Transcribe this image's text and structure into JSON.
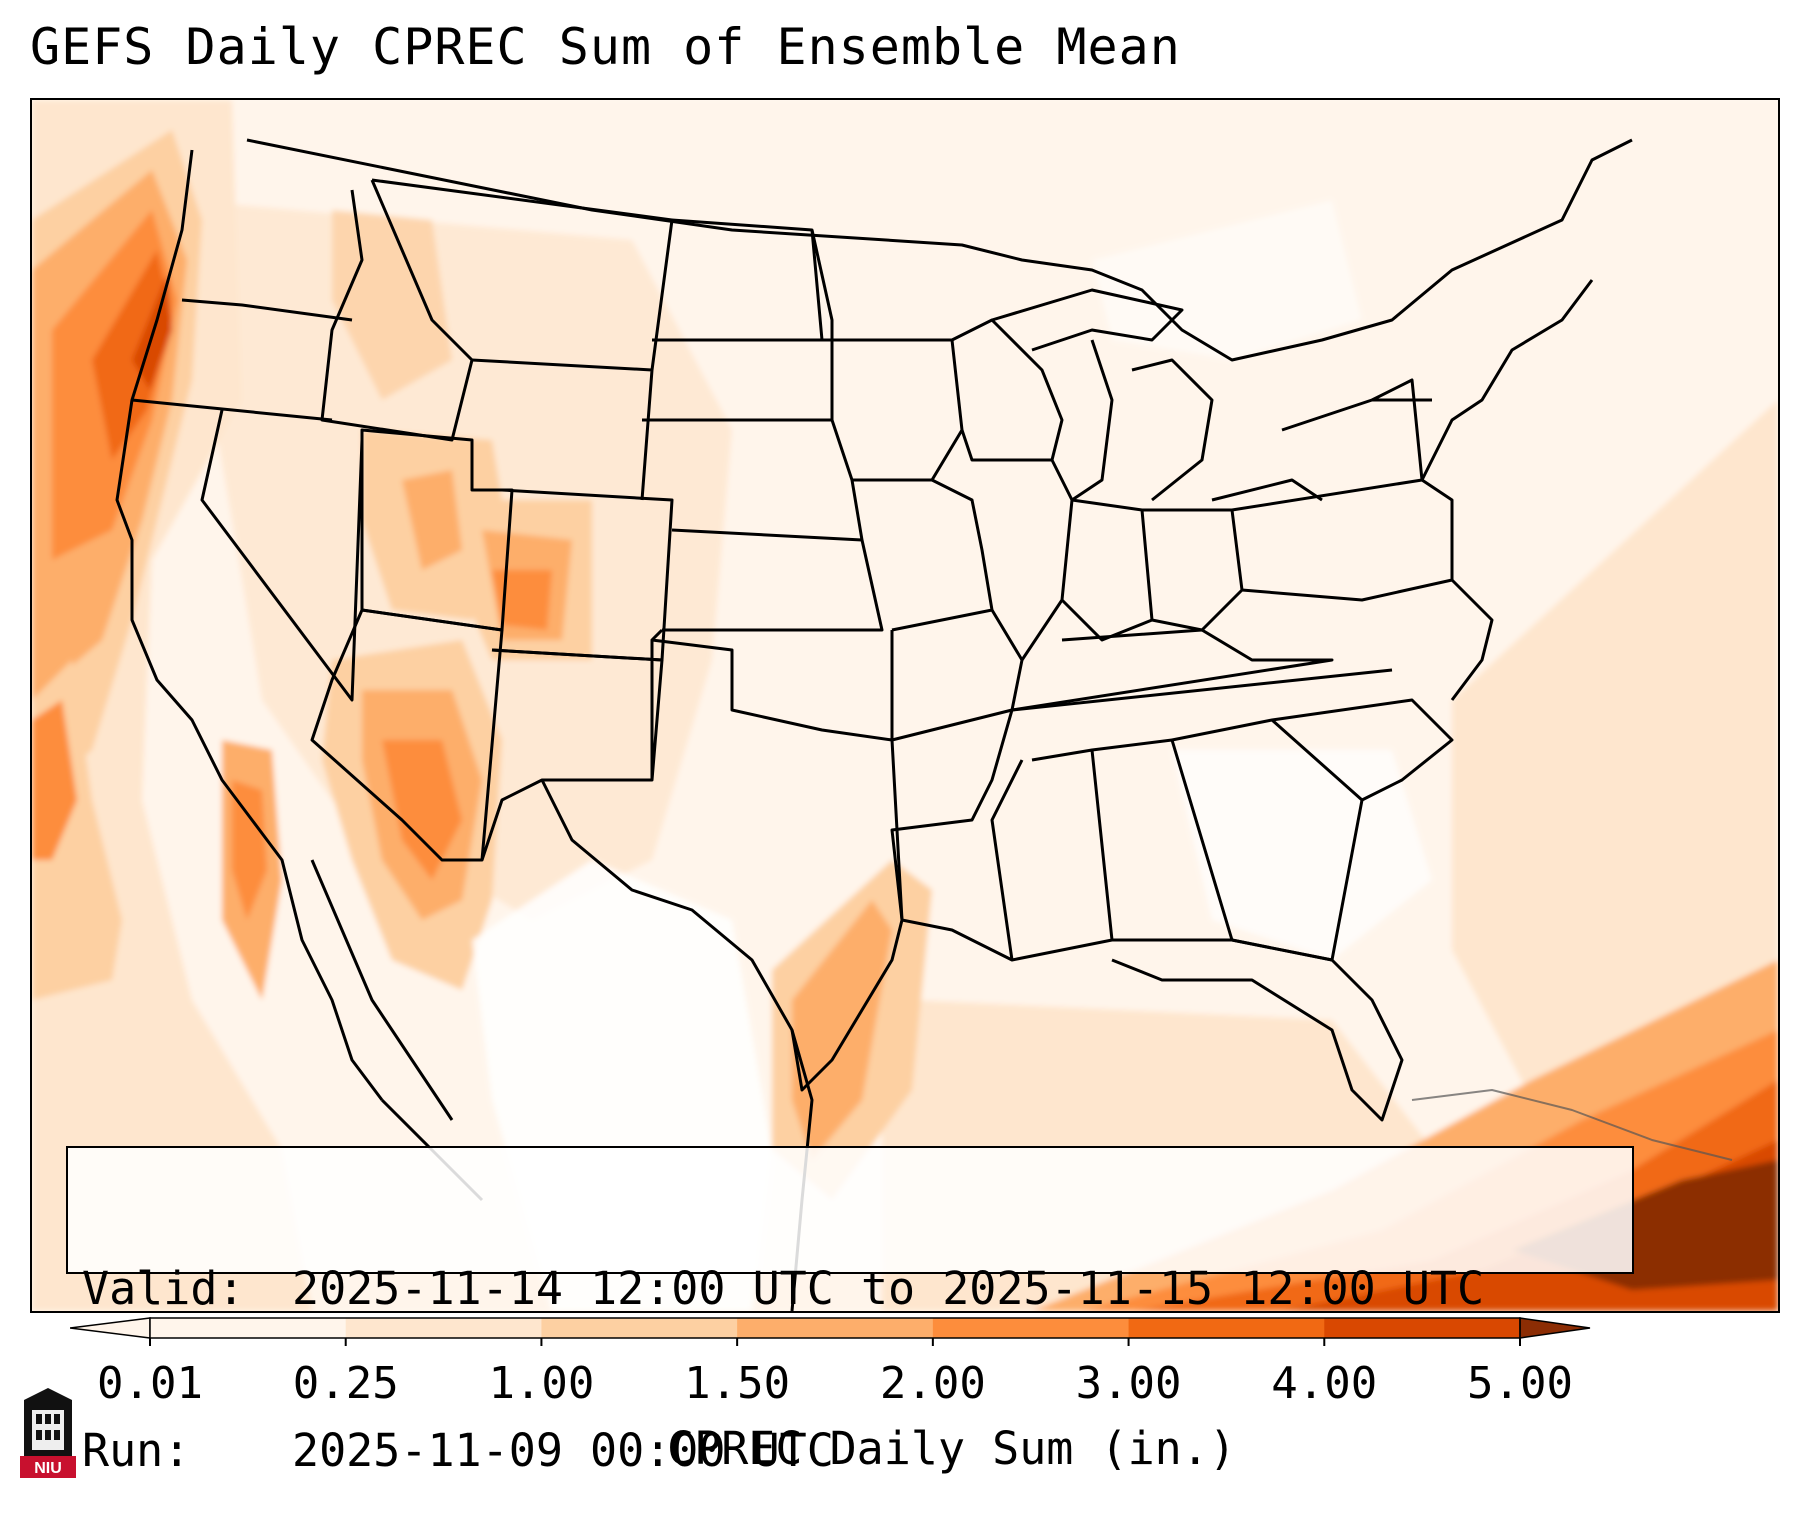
{
  "title": "GEFS Daily CPREC Sum of Ensemble Mean",
  "info": {
    "valid_label": "Valid:",
    "valid_value": "2025-11-14 12:00 UTC to 2025-11-15 12:00 UTC",
    "run_label": "Run:",
    "run_value": "2025-11-09 00:00 UTC"
  },
  "colorbar": {
    "label": "CPREC Daily Sum (in.)",
    "ticks": [
      "0.01",
      "0.25",
      "1.00",
      "1.50",
      "2.00",
      "3.00",
      "4.00",
      "5.00"
    ],
    "colors": [
      "#fff5eb",
      "#fee6ce",
      "#fdd0a2",
      "#fdae6b",
      "#fd8d3c",
      "#f16913",
      "#d94801",
      "#8c2d04"
    ]
  },
  "logo": {
    "text": "NIU",
    "icon": "niu-tower-icon"
  },
  "map": {
    "region": "Contiguous United States",
    "regions": [
      {
        "name": "pacific-northwest-coast",
        "level": 6
      },
      {
        "name": "offshore-california",
        "level": 4
      },
      {
        "name": "southern-california",
        "level": 4
      },
      {
        "name": "arizona",
        "level": 4
      },
      {
        "name": "colorado",
        "level": 4
      },
      {
        "name": "utah",
        "level": 2
      },
      {
        "name": "texas-coast",
        "level": 3
      },
      {
        "name": "gulf-of-mexico",
        "level": 1
      },
      {
        "name": "atlantic-offshore",
        "level": 1
      },
      {
        "name": "caribbean",
        "level": 7
      }
    ]
  }
}
